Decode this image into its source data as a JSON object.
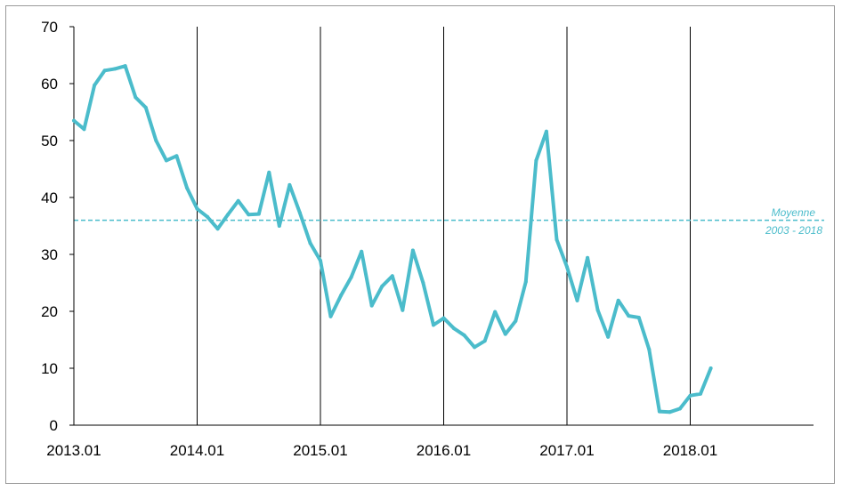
{
  "chart_data": {
    "type": "line",
    "title": "",
    "xlabel": "",
    "ylabel": "",
    "ylim": [
      0,
      70
    ],
    "y_ticks": [
      0,
      10,
      20,
      30,
      40,
      50,
      60,
      70
    ],
    "x_tick_labels": [
      "2013.01",
      "2014.01",
      "2015.01",
      "2016.01",
      "2017.01",
      "2018.01"
    ],
    "x_range": [
      "2013-01",
      "2018-12"
    ],
    "vertical_gridlines_at": [
      "2014-01",
      "2015-01",
      "2016-01",
      "2017-01",
      "2018-01"
    ],
    "series": [
      {
        "color": "#4bbccb",
        "points": [
          {
            "x": "2013-01",
            "y": 53.5
          },
          {
            "x": "2013-02",
            "y": 52
          },
          {
            "x": "2013-03",
            "y": 59.7
          },
          {
            "x": "2013-04",
            "y": 62.3
          },
          {
            "x": "2013-05",
            "y": 62.6
          },
          {
            "x": "2013-06",
            "y": 63.1
          },
          {
            "x": "2013-07",
            "y": 57.6
          },
          {
            "x": "2013-08",
            "y": 55.8
          },
          {
            "x": "2013-09",
            "y": 50
          },
          {
            "x": "2013-10",
            "y": 46.5
          },
          {
            "x": "2013-11",
            "y": 47.3
          },
          {
            "x": "2013-12",
            "y": 41.7
          },
          {
            "x": "2014-01",
            "y": 38
          },
          {
            "x": "2014-02",
            "y": 36.6
          },
          {
            "x": "2014-03",
            "y": 34.5
          },
          {
            "x": "2014-04",
            "y": 37
          },
          {
            "x": "2014-05",
            "y": 39.4
          },
          {
            "x": "2014-06",
            "y": 37
          },
          {
            "x": "2014-07",
            "y": 37.1
          },
          {
            "x": "2014-08",
            "y": 44.4
          },
          {
            "x": "2014-09",
            "y": 35
          },
          {
            "x": "2014-10",
            "y": 42.2
          },
          {
            "x": "2014-11",
            "y": 37.3
          },
          {
            "x": "2014-12",
            "y": 32
          },
          {
            "x": "2015-01",
            "y": 28.9
          },
          {
            "x": "2015-02",
            "y": 19.1
          },
          {
            "x": "2015-03",
            "y": 22.8
          },
          {
            "x": "2015-04",
            "y": 26
          },
          {
            "x": "2015-05",
            "y": 30.5
          },
          {
            "x": "2015-06",
            "y": 21
          },
          {
            "x": "2015-07",
            "y": 24.4
          },
          {
            "x": "2015-08",
            "y": 26.2
          },
          {
            "x": "2015-09",
            "y": 20.2
          },
          {
            "x": "2015-10",
            "y": 30.7
          },
          {
            "x": "2015-11",
            "y": 25
          },
          {
            "x": "2015-12",
            "y": 17.6
          },
          {
            "x": "2016-01",
            "y": 18.8
          },
          {
            "x": "2016-02",
            "y": 17
          },
          {
            "x": "2016-03",
            "y": 15.8
          },
          {
            "x": "2016-04",
            "y": 13.7
          },
          {
            "x": "2016-05",
            "y": 14.8
          },
          {
            "x": "2016-06",
            "y": 19.9
          },
          {
            "x": "2016-07",
            "y": 16
          },
          {
            "x": "2016-08",
            "y": 18.3
          },
          {
            "x": "2016-09",
            "y": 25.2
          },
          {
            "x": "2016-10",
            "y": 46.5
          },
          {
            "x": "2016-11",
            "y": 51.6
          },
          {
            "x": "2016-12",
            "y": 32.6
          },
          {
            "x": "2017-01",
            "y": 27.8
          },
          {
            "x": "2017-02",
            "y": 21.9
          },
          {
            "x": "2017-03",
            "y": 29.4
          },
          {
            "x": "2017-04",
            "y": 20.2
          },
          {
            "x": "2017-05",
            "y": 15.5
          },
          {
            "x": "2017-06",
            "y": 21.9
          },
          {
            "x": "2017-07",
            "y": 19.2
          },
          {
            "x": "2017-08",
            "y": 18.9
          },
          {
            "x": "2017-09",
            "y": 13.3
          },
          {
            "x": "2017-10",
            "y": 2.4
          },
          {
            "x": "2017-11",
            "y": 2.3
          },
          {
            "x": "2017-12",
            "y": 2.9
          },
          {
            "x": "2018-01",
            "y": 5.2
          },
          {
            "x": "2018-02",
            "y": 5.5
          },
          {
            "x": "2018-03",
            "y": 10
          }
        ]
      }
    ],
    "reference_line": {
      "y": 36,
      "label_line1": "Moyenne",
      "label_line2": "2003 - 2018",
      "color": "#4bbccb",
      "style": "dashed"
    }
  }
}
